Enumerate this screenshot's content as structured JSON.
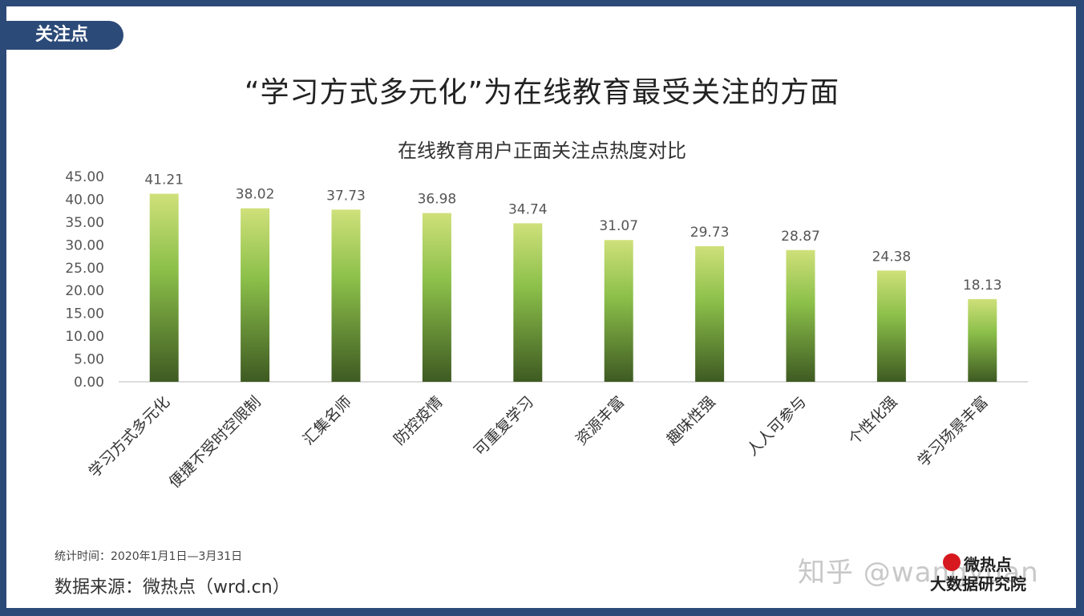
{
  "tag": "关注点",
  "headline": "“学习方式多元化”为在线教育最受关注的方面",
  "chart_data": {
    "type": "bar",
    "title": "在线教育用户正面关注点热度对比",
    "categories": [
      "学习方式多元化",
      "便捷不受时空限制",
      "汇集名师",
      "防控疫情",
      "可重复学习",
      "资源丰富",
      "趣味性强",
      "人人可参与",
      "个性化强",
      "学习场景丰富"
    ],
    "values": [
      41.21,
      38.02,
      37.73,
      36.98,
      34.74,
      31.07,
      29.73,
      28.87,
      24.38,
      18.13
    ],
    "value_labels": [
      "41.21",
      "38.02",
      "37.73",
      "36.98",
      "34.74",
      "31.07",
      "29.73",
      "28.87",
      "24.38",
      "18.13"
    ],
    "ylim": [
      0,
      45
    ],
    "yticks": [
      "0.00",
      "5.00",
      "10.00",
      "15.00",
      "20.00",
      "25.00",
      "30.00",
      "35.00",
      "40.00",
      "45.00"
    ],
    "grid": false,
    "legend": "none",
    "bar_color_top": "#cfe07a",
    "bar_color_mid": "#8cc04a",
    "bar_color_bottom": "#3e5a22"
  },
  "footer": {
    "time": "统计时间：2020年1月1日—3月31日",
    "source": "数据来源：微热点（wrd.cn）"
  },
  "watermark": "知乎 @wangyuan",
  "logo": {
    "line1": "微热点",
    "line2": "大数据研究院"
  }
}
